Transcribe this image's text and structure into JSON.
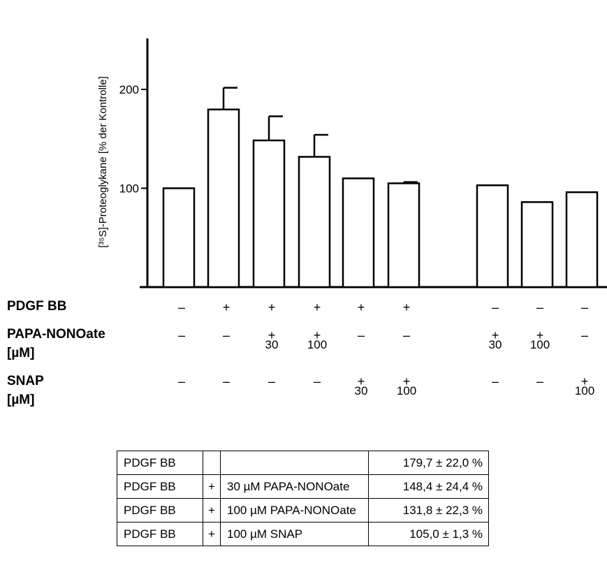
{
  "chart_data": {
    "type": "bar",
    "ylabel": "[³⁵S]-Proteoglykane [% der Kontrolle]",
    "yticks": [
      100,
      200
    ],
    "ylim": [
      0,
      250
    ],
    "bars": [
      {
        "value": 100,
        "error": 0,
        "group": 0
      },
      {
        "value": 179.7,
        "error": 22.0,
        "group": 0
      },
      {
        "value": 148.4,
        "error": 24.4,
        "group": 0
      },
      {
        "value": 131.8,
        "error": 22.3,
        "group": 0
      },
      {
        "value": 110,
        "error": 0,
        "group": 0
      },
      {
        "value": 105.0,
        "error": 1.3,
        "group": 0
      },
      {
        "value": 103,
        "error": 0,
        "group": 1
      },
      {
        "value": 86,
        "error": 0,
        "group": 1
      },
      {
        "value": 96,
        "error": 0,
        "group": 1
      }
    ],
    "conditions": {
      "labels": [
        "PDGF BB",
        "PAPA-NONOate",
        "[µM]",
        "SNAP",
        "[µM]"
      ],
      "pdgf": [
        "–",
        "+",
        "+",
        "+",
        "+",
        "+",
        "–",
        "–",
        "–"
      ],
      "papa": [
        {
          "mark": "–",
          "dose": ""
        },
        {
          "mark": "–",
          "dose": ""
        },
        {
          "mark": "+",
          "dose": "30"
        },
        {
          "mark": "+",
          "dose": "100"
        },
        {
          "mark": "–",
          "dose": ""
        },
        {
          "mark": "–",
          "dose": ""
        },
        {
          "mark": "+",
          "dose": "30"
        },
        {
          "mark": "+",
          "dose": "100"
        },
        {
          "mark": "–",
          "dose": ""
        }
      ],
      "snap": [
        {
          "mark": "–",
          "dose": ""
        },
        {
          "mark": "–",
          "dose": ""
        },
        {
          "mark": "–",
          "dose": ""
        },
        {
          "mark": "–",
          "dose": ""
        },
        {
          "mark": "+",
          "dose": "30"
        },
        {
          "mark": "+",
          "dose": "100"
        },
        {
          "mark": "–",
          "dose": ""
        },
        {
          "mark": "–",
          "dose": ""
        },
        {
          "mark": "+",
          "dose": "100"
        }
      ]
    }
  },
  "table": {
    "rows": [
      {
        "name": "PDGF BB",
        "plus": "",
        "treatment": "",
        "value": "179,7 ± 22,0 %"
      },
      {
        "name": "PDGF BB",
        "plus": "+",
        "treatment": "30 µM PAPA-NONOate",
        "value": "148,4 ± 24,4 %"
      },
      {
        "name": "PDGF BB",
        "plus": "+",
        "treatment": "100 µM PAPA-NONOate",
        "value": "131,8 ± 22,3 %"
      },
      {
        "name": "PDGF BB",
        "plus": "+",
        "treatment": "100 µM SNAP",
        "value": "105,0 ± 1,3 %"
      }
    ]
  }
}
